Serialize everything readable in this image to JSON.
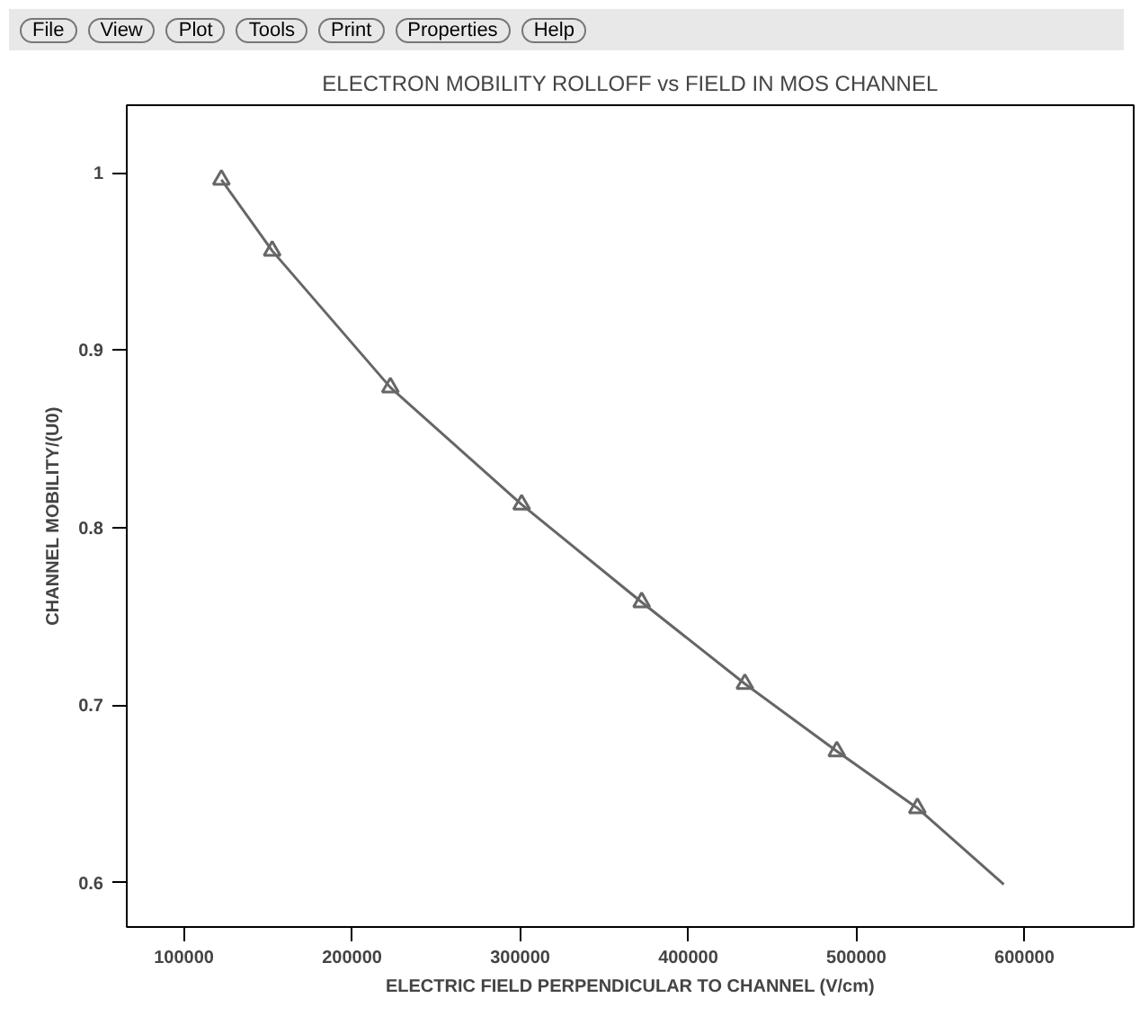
{
  "chart_data": {
    "type": "line",
    "title": "ELECTRON MOBILITY ROLLOFF vs FIELD IN MOS CHANNEL",
    "xlabel": "ELECTRIC FIELD PERPENDICULAR TO CHANNEL (V/cm)",
    "ylabel": "CHANNEL MOBILITY/(U0)",
    "annotations": [
      "File",
      "View",
      "Plot",
      "Tools",
      "Print",
      "Properties",
      "Help"
    ],
    "xlim": [
      66000,
      665000
    ],
    "ylim": [
      0.575,
      1.038
    ],
    "xticks": [
      100000,
      200000,
      300000,
      400000,
      500000,
      600000
    ],
    "yticks": [
      0.6,
      0.7,
      0.8,
      0.9,
      1
    ],
    "grid": false,
    "series": [
      {
        "color": "#666666",
        "marker": "none",
        "x": [
          122300,
          152500,
          222800,
          300900,
          372300,
          433700,
          488400,
          536300,
          587700
        ],
        "values": [
          0.996,
          0.956,
          0.879,
          0.813,
          0.758,
          0.712,
          0.674,
          0.642,
          0.599
        ]
      },
      {
        "type": "scatter",
        "color": "#666666",
        "marker": "triangle",
        "x": [
          122300,
          152500,
          222800,
          300900,
          372300,
          433700,
          488400,
          536300
        ],
        "values": [
          0.996,
          0.956,
          0.879,
          0.813,
          0.758,
          0.712,
          0.674,
          0.642
        ]
      }
    ]
  }
}
